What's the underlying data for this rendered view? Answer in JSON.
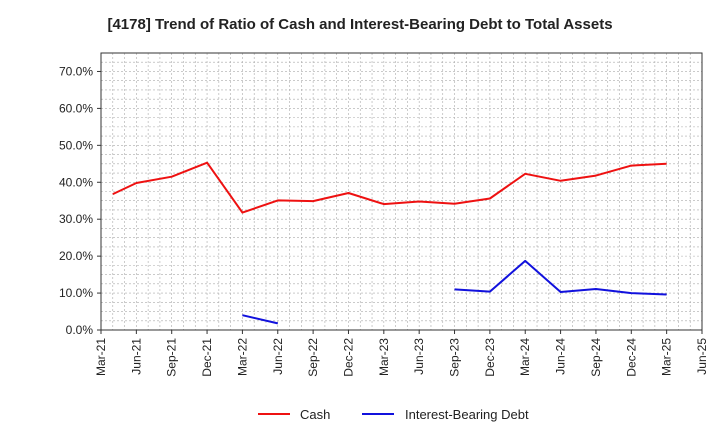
{
  "chart_data": {
    "type": "line",
    "title": "[4178]  Trend of Ratio of Cash and Interest-Bearing Debt to Total Assets",
    "xlabel": "",
    "ylabel": "",
    "ylim": [
      0,
      75
    ],
    "y_ticks": [
      0,
      10,
      20,
      30,
      40,
      50,
      60,
      70
    ],
    "y_tick_labels": [
      "0.0%",
      "10.0%",
      "20.0%",
      "30.0%",
      "40.0%",
      "50.0%",
      "60.0%",
      "70.0%"
    ],
    "categories": [
      "Mar-21",
      "Jun-21",
      "Sep-21",
      "Dec-21",
      "Mar-22",
      "Jun-22",
      "Sep-22",
      "Dec-22",
      "Mar-23",
      "Jun-23",
      "Sep-23",
      "Dec-23",
      "Mar-24",
      "Jun-24",
      "Sep-24",
      "Dec-24",
      "Mar-25",
      "Jun-25"
    ],
    "x_positions": [
      0,
      3,
      6,
      9,
      12,
      15,
      18,
      21,
      24,
      27,
      30,
      33,
      36,
      39,
      42,
      45,
      48,
      51
    ],
    "x_range": [
      0,
      51
    ],
    "grid": true,
    "legend_position": "bottom",
    "series": [
      {
        "name": "Cash",
        "color": "#ee1111",
        "x": [
          1,
          3,
          6,
          9,
          12,
          15,
          18,
          21,
          24,
          27,
          30,
          33,
          36,
          39,
          42,
          45,
          48
        ],
        "values": [
          36.8,
          39.8,
          41.5,
          45.3,
          31.8,
          35.1,
          34.9,
          37.1,
          34.1,
          34.8,
          34.2,
          35.6,
          42.3,
          40.4,
          41.8,
          44.5,
          45.0
        ]
      },
      {
        "name": "Interest-Bearing Debt",
        "color": "#1111dd",
        "x": [
          1,
          3,
          6,
          9,
          12,
          15,
          18,
          21,
          24,
          27,
          30,
          33,
          36,
          39,
          42,
          45,
          48
        ],
        "values": [
          null,
          null,
          null,
          null,
          4.0,
          1.8,
          null,
          null,
          null,
          null,
          11.0,
          10.4,
          18.7,
          10.3,
          11.1,
          10.0,
          9.6
        ]
      }
    ]
  }
}
